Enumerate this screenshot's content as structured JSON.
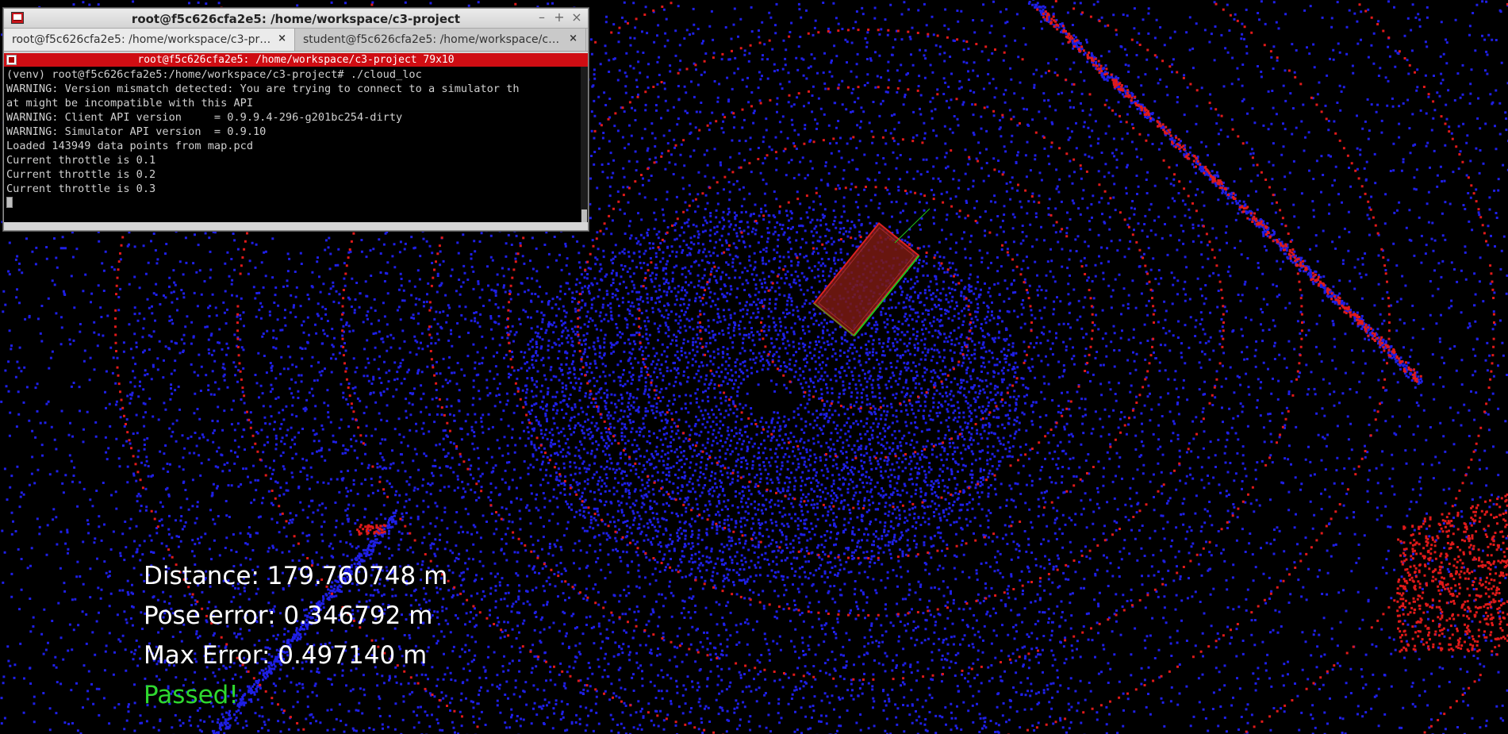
{
  "window": {
    "title": "root@f5c626cfa2e5: /home/workspace/c3-project",
    "icon": "terminal-app-icon",
    "controls": [
      "–",
      "+",
      "×"
    ]
  },
  "tabs": [
    {
      "label": "root@f5c626cfa2e5: /home/workspace/c3-pr…",
      "active": true
    },
    {
      "label": "student@f5c626cfa2e5: /home/workspace/c3…",
      "active": false
    }
  ],
  "tab_close_glyph": "×",
  "terminal": {
    "header": "root@f5c626cfa2e5: /home/workspace/c3-project 79x10",
    "lines": [
      "(venv) root@f5c626cfa2e5:/home/workspace/c3-project# ./cloud_loc",
      "WARNING: Version mismatch detected: You are trying to connect to a simulator th",
      "at might be incompatible with this API",
      "WARNING: Client API version     = 0.9.9.4-296-g201bc254-dirty",
      "WARNING: Simulator API version  = 0.9.10",
      "Loaded 143949 data points from map.pcd",
      "Current throttle is 0.1",
      "Current throttle is 0.2",
      "Current throttle is 0.3"
    ]
  },
  "stats": {
    "distance": "Distance: 179.760748 m",
    "pose_error": "Pose error: 0.346792 m",
    "max_error": "Max Error: 0.497140 m",
    "status": "Passed!"
  },
  "colors": {
    "map_points": "#1f1fe6",
    "scan_points": "#e01a1a",
    "vehicle_box": "#b3231d",
    "passed": "#2fd82f",
    "background": "#000000"
  }
}
